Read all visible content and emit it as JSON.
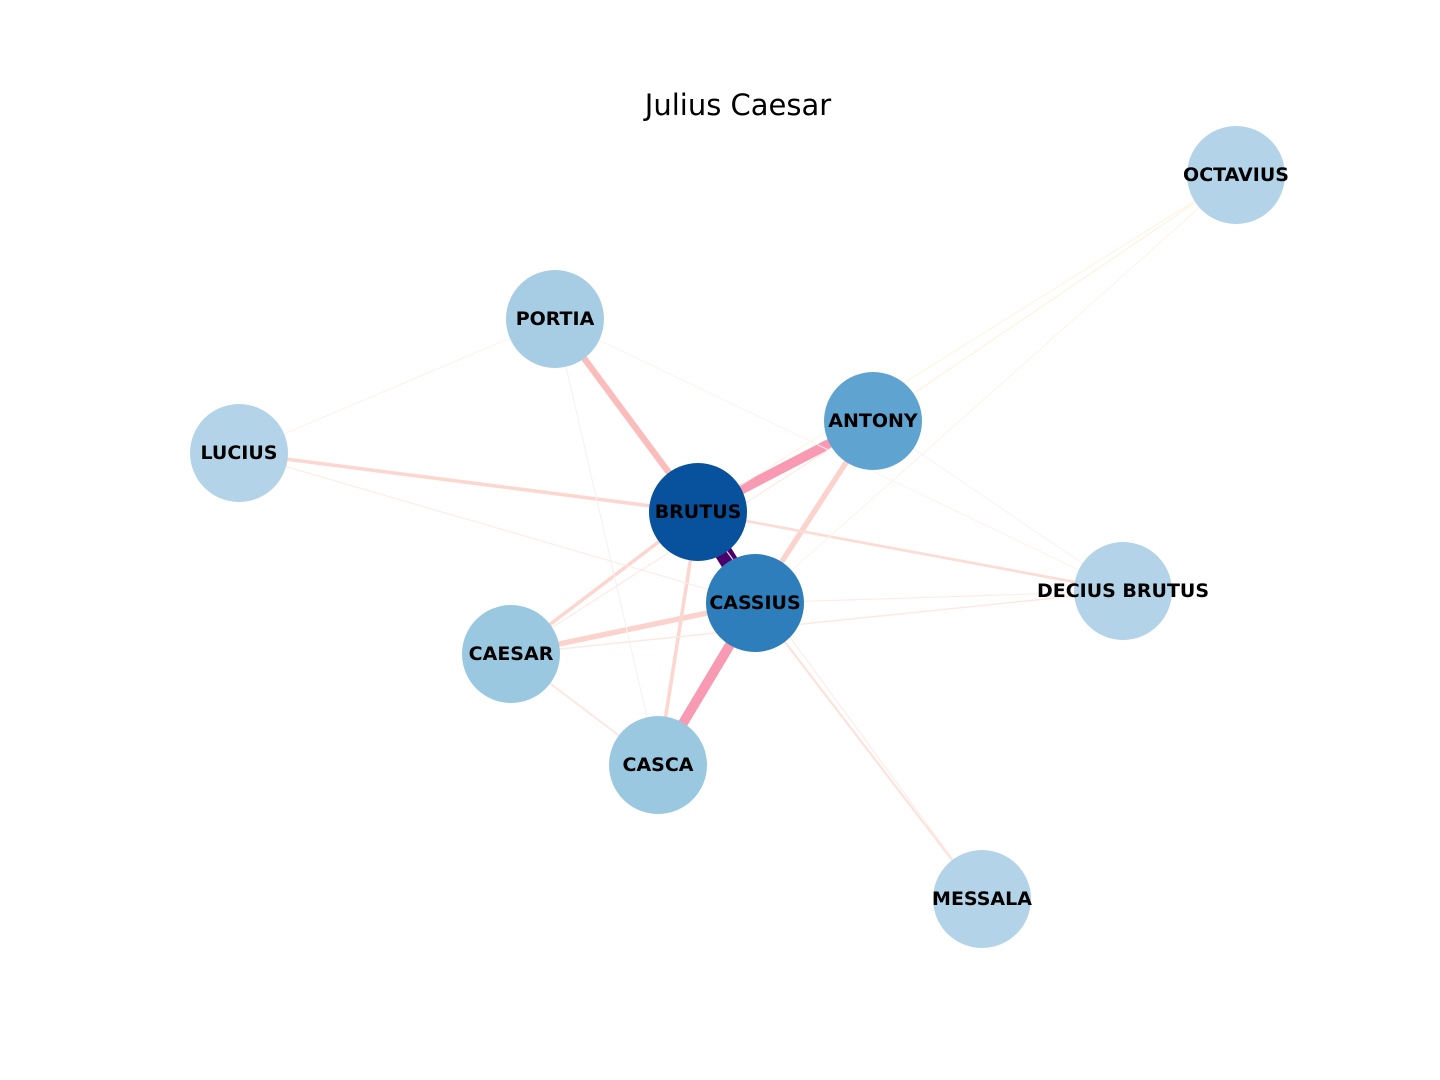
{
  "title": "Julius Caesar",
  "nodes": [
    {
      "id": "OCTAVIUS",
      "label": "OCTAVIUS",
      "color": "#b3d3e8"
    },
    {
      "id": "PORTIA",
      "label": "PORTIA",
      "color": "#a6cde3"
    },
    {
      "id": "ANTONY",
      "label": "ANTONY",
      "color": "#5fa4d0"
    },
    {
      "id": "LUCIUS",
      "label": "LUCIUS",
      "color": "#b3d3e8"
    },
    {
      "id": "BRUTUS",
      "label": "BRUTUS",
      "color": "#08519c"
    },
    {
      "id": "CASSIUS",
      "label": "CASSIUS",
      "color": "#2e7ebc"
    },
    {
      "id": "DECIUS_BRUTUS",
      "label": "DECIUS BRUTUS",
      "color": "#b3d3e8"
    },
    {
      "id": "CAESAR",
      "label": "CAESAR",
      "color": "#9ac8e0"
    },
    {
      "id": "CASCA",
      "label": "CASCA",
      "color": "#9ac8e0"
    },
    {
      "id": "MESSALA",
      "label": "MESSALA",
      "color": "#b3d3e8"
    }
  ],
  "edges": [
    {
      "source": "BRUTUS",
      "target": "CASSIUS",
      "weight": 1.0,
      "color": "#4a006a"
    },
    {
      "source": "BRUTUS",
      "target": "ANTONY",
      "weight": 0.55,
      "color": "#f99ab4"
    },
    {
      "source": "CASSIUS",
      "target": "CASCA",
      "weight": 0.55,
      "color": "#f99ab4"
    },
    {
      "source": "BRUTUS",
      "target": "PORTIA",
      "weight": 0.35,
      "color": "#fbbcbc"
    },
    {
      "source": "CASSIUS",
      "target": "ANTONY",
      "weight": 0.3,
      "color": "#fcd2cd"
    },
    {
      "source": "CASSIUS",
      "target": "CAESAR",
      "weight": 0.3,
      "color": "#fcd2cd"
    },
    {
      "source": "BRUTUS",
      "target": "LUCIUS",
      "weight": 0.2,
      "color": "#fcd7d0"
    },
    {
      "source": "BRUTUS",
      "target": "CASCA",
      "weight": 0.2,
      "color": "#fcd7d0"
    },
    {
      "source": "BRUTUS",
      "target": "CAESAR",
      "weight": 0.2,
      "color": "#fcd7d0"
    },
    {
      "source": "BRUTUS",
      "target": "DECIUS_BRUTUS",
      "weight": 0.15,
      "color": "#fcdcd4"
    },
    {
      "source": "CASSIUS",
      "target": "MESSALA",
      "weight": 0.12,
      "color": "#fde2dc"
    },
    {
      "source": "CAESAR",
      "target": "CASCA",
      "weight": 0.1,
      "color": "#fde6e0"
    },
    {
      "source": "CAESAR",
      "target": "DECIUS_BRUTUS",
      "weight": 0.08,
      "color": "#fde8e2"
    },
    {
      "source": "CASSIUS",
      "target": "DECIUS_BRUTUS",
      "weight": 0.06,
      "color": "#fdebe5"
    },
    {
      "source": "LUCIUS",
      "target": "CASSIUS",
      "weight": 0.06,
      "color": "#fdebe5"
    },
    {
      "source": "LUCIUS",
      "target": "PORTIA",
      "weight": 0.04,
      "color": "#fdf0ea"
    },
    {
      "source": "BRUTUS",
      "target": "MESSALA",
      "weight": 0.06,
      "color": "#fdebe5"
    },
    {
      "source": "ANTONY",
      "target": "OCTAVIUS",
      "weight": 0.05,
      "color": "#fdf2d8"
    },
    {
      "source": "BRUTUS",
      "target": "OCTAVIUS",
      "weight": 0.04,
      "color": "#fdf3df"
    },
    {
      "source": "CASSIUS",
      "target": "OCTAVIUS",
      "weight": 0.03,
      "color": "#fdf3e6"
    },
    {
      "source": "PORTIA",
      "target": "DECIUS_BRUTUS",
      "weight": 0.03,
      "color": "#fdf3ee"
    },
    {
      "source": "PORTIA",
      "target": "CASCA",
      "weight": 0.03,
      "color": "#f2f0f8"
    },
    {
      "source": "ANTONY",
      "target": "DECIUS_BRUTUS",
      "weight": 0.03,
      "color": "#f5f3f8"
    },
    {
      "source": "ANTONY",
      "target": "CAESAR",
      "weight": 0.04,
      "color": "#fde6e0"
    }
  ]
}
